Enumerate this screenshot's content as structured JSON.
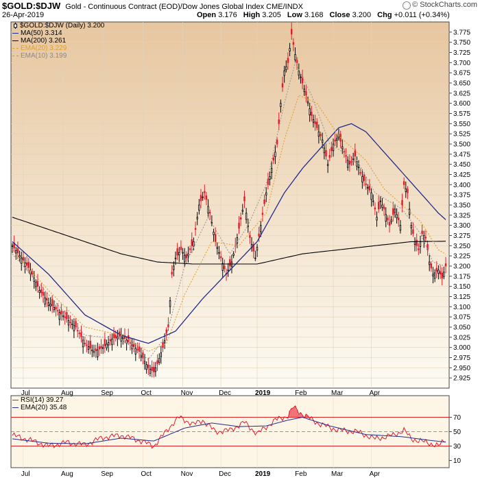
{
  "header": {
    "symbol": "$GOLD:$DJW",
    "title": "Gold - Continuous Contract (EOD)/Dow Jones Global Index  CME/INDX",
    "date": "26-Apr-2019",
    "open_label": "Open",
    "open": "3.176",
    "high_label": "High",
    "high": "3.205",
    "low_label": "Low",
    "low": "3.168",
    "close_label": "Close",
    "close": "3.200",
    "chg_label": "Chg",
    "chg": "+0.011 (+0.34%)",
    "brand": "© StockCharts.com"
  },
  "legend": {
    "main": "$GOLD:$DJW (Daily) 3.200",
    "ma50": "MA(50) 3.314",
    "ma200": "MA(200) 3.261",
    "ema20": "EMA(20) 3.229",
    "ema10": "EMA(10) 3.199",
    "rsi": "RSI(14) 39.27",
    "rsi_ema": "EMA(20) 35.48"
  },
  "colors": {
    "up_candle": "#000000",
    "down_candle": "#e8192c",
    "ma50": "#1e2a8c",
    "ma200": "#000000",
    "ema20": "#e0a030",
    "ema10": "#9a9a9a",
    "rsi_line": "#e8192c",
    "rsi_ema": "#1e2a8c",
    "bg_top": "#e7c69f",
    "bg_bottom": "#fdfbf3"
  },
  "chart_data": [
    {
      "type": "candlestick",
      "title": "$GOLD:$DJW (Daily)",
      "x_labels": [
        "Jul",
        "Aug",
        "Sep",
        "Oct",
        "Nov",
        "Dec",
        "2019",
        "Feb",
        "Mar",
        "Apr"
      ],
      "ylim": [
        2.9,
        3.8
      ],
      "y_ticks": [
        "3.775",
        "3.750",
        "3.725",
        "3.700",
        "3.675",
        "3.650",
        "3.625",
        "3.600",
        "3.575",
        "3.550",
        "3.525",
        "3.500",
        "3.475",
        "3.450",
        "3.425",
        "3.400",
        "3.375",
        "3.350",
        "3.325",
        "3.300",
        "3.275",
        "3.250",
        "3.225",
        "3.200",
        "3.175",
        "3.150",
        "3.125",
        "3.100",
        "3.075",
        "3.050",
        "3.025",
        "3.000",
        "2.975",
        "2.950",
        "2.925"
      ],
      "close_keypoints": [
        [
          0,
          3.25
        ],
        [
          5,
          3.22
        ],
        [
          10,
          3.19
        ],
        [
          15,
          3.14
        ],
        [
          20,
          3.11
        ],
        [
          25,
          3.09
        ],
        [
          30,
          3.07
        ],
        [
          35,
          3.05
        ],
        [
          40,
          3.01
        ],
        [
          45,
          2.99
        ],
        [
          50,
          3.0
        ],
        [
          55,
          3.02
        ],
        [
          60,
          3.03
        ],
        [
          65,
          3.01
        ],
        [
          70,
          2.99
        ],
        [
          75,
          2.95
        ],
        [
          78,
          2.94
        ],
        [
          80,
          2.96
        ],
        [
          83,
          3.0
        ],
        [
          86,
          3.05
        ],
        [
          88,
          3.18
        ],
        [
          90,
          3.22
        ],
        [
          93,
          3.24
        ],
        [
          96,
          3.22
        ],
        [
          100,
          3.26
        ],
        [
          103,
          3.35
        ],
        [
          106,
          3.38
        ],
        [
          109,
          3.33
        ],
        [
          112,
          3.26
        ],
        [
          115,
          3.22
        ],
        [
          118,
          3.18
        ],
        [
          121,
          3.21
        ],
        [
          124,
          3.27
        ],
        [
          128,
          3.36
        ],
        [
          131,
          3.27
        ],
        [
          134,
          3.22
        ],
        [
          137,
          3.3
        ],
        [
          140,
          3.38
        ],
        [
          143,
          3.44
        ],
        [
          146,
          3.5
        ],
        [
          148,
          3.6
        ],
        [
          150,
          3.68
        ],
        [
          152,
          3.7
        ],
        [
          154,
          3.77
        ],
        [
          156,
          3.72
        ],
        [
          158,
          3.68
        ],
        [
          160,
          3.65
        ],
        [
          162,
          3.62
        ],
        [
          165,
          3.57
        ],
        [
          168,
          3.54
        ],
        [
          171,
          3.51
        ],
        [
          174,
          3.45
        ],
        [
          177,
          3.5
        ],
        [
          180,
          3.52
        ],
        [
          183,
          3.48
        ],
        [
          186,
          3.45
        ],
        [
          189,
          3.47
        ],
        [
          192,
          3.43
        ],
        [
          195,
          3.4
        ],
        [
          198,
          3.38
        ],
        [
          201,
          3.32
        ],
        [
          203,
          3.36
        ],
        [
          205,
          3.34
        ],
        [
          208,
          3.3
        ],
        [
          211,
          3.34
        ],
        [
          214,
          3.3
        ],
        [
          216,
          3.4
        ],
        [
          218,
          3.38
        ],
        [
          220,
          3.3
        ],
        [
          222,
          3.26
        ],
        [
          224,
          3.24
        ],
        [
          226,
          3.28
        ],
        [
          228,
          3.27
        ],
        [
          230,
          3.21
        ],
        [
          232,
          3.18
        ],
        [
          235,
          3.19
        ],
        [
          237,
          3.17
        ],
        [
          239,
          3.2
        ]
      ],
      "series": [
        {
          "name": "MA(50)",
          "keypoints": [
            [
              0,
              3.26
            ],
            [
              20,
              3.18
            ],
            [
              40,
              3.08
            ],
            [
              60,
              3.03
            ],
            [
              75,
              3.01
            ],
            [
              90,
              3.04
            ],
            [
              105,
              3.12
            ],
            [
              120,
              3.19
            ],
            [
              135,
              3.26
            ],
            [
              150,
              3.38
            ],
            [
              160,
              3.44
            ],
            [
              170,
              3.49
            ],
            [
              180,
              3.54
            ],
            [
              187,
              3.55
            ],
            [
              195,
              3.53
            ],
            [
              205,
              3.48
            ],
            [
              215,
              3.43
            ],
            [
              225,
              3.38
            ],
            [
              235,
              3.33
            ],
            [
              239,
              3.314
            ]
          ]
        },
        {
          "name": "MA(200)",
          "keypoints": [
            [
              0,
              3.32
            ],
            [
              20,
              3.29
            ],
            [
              40,
              3.26
            ],
            [
              60,
              3.23
            ],
            [
              80,
              3.21
            ],
            [
              100,
              3.205
            ],
            [
              120,
              3.205
            ],
            [
              135,
              3.205
            ],
            [
              150,
              3.22
            ],
            [
              160,
              3.23
            ],
            [
              180,
              3.24
            ],
            [
              200,
              3.25
            ],
            [
              220,
              3.26
            ],
            [
              239,
              3.261
            ]
          ]
        },
        {
          "name": "EMA(20)",
          "keypoints": [
            [
              0,
              3.24
            ],
            [
              20,
              3.14
            ],
            [
              40,
              3.05
            ],
            [
              60,
              3.03
            ],
            [
              75,
              2.99
            ],
            [
              85,
              3.01
            ],
            [
              95,
              3.13
            ],
            [
              110,
              3.26
            ],
            [
              125,
              3.25
            ],
            [
              140,
              3.33
            ],
            [
              150,
              3.51
            ],
            [
              158,
              3.62
            ],
            [
              168,
              3.6
            ],
            [
              180,
              3.52
            ],
            [
              195,
              3.46
            ],
            [
              205,
              3.39
            ],
            [
              215,
              3.35
            ],
            [
              225,
              3.31
            ],
            [
              235,
              3.24
            ],
            [
              239,
              3.229
            ]
          ]
        },
        {
          "name": "EMA(10)",
          "keypoints": [
            [
              0,
              3.23
            ],
            [
              20,
              3.13
            ],
            [
              40,
              3.03
            ],
            [
              60,
              3.02
            ],
            [
              75,
              2.97
            ],
            [
              85,
              3.03
            ],
            [
              95,
              3.2
            ],
            [
              108,
              3.32
            ],
            [
              120,
              3.23
            ],
            [
              130,
              3.3
            ],
            [
              140,
              3.4
            ],
            [
              150,
              3.6
            ],
            [
              156,
              3.7
            ],
            [
              165,
              3.62
            ],
            [
              175,
              3.5
            ],
            [
              190,
              3.46
            ],
            [
              200,
              3.38
            ],
            [
              215,
              3.34
            ],
            [
              225,
              3.28
            ],
            [
              232,
              3.21
            ],
            [
              239,
              3.199
            ]
          ]
        }
      ]
    },
    {
      "type": "line",
      "title": "RSI(14)",
      "ylim": [
        0,
        100
      ],
      "y_ticks": [
        "70",
        "50",
        "30",
        "10"
      ],
      "reference_lines": [
        70,
        50,
        30
      ],
      "series": [
        {
          "name": "RSI(14)",
          "keypoints": [
            [
              0,
              45
            ],
            [
              10,
              38
            ],
            [
              20,
              30
            ],
            [
              30,
              35
            ],
            [
              40,
              32
            ],
            [
              50,
              42
            ],
            [
              60,
              45
            ],
            [
              70,
              38
            ],
            [
              78,
              30
            ],
            [
              88,
              60
            ],
            [
              92,
              70
            ],
            [
              100,
              60
            ],
            [
              105,
              66
            ],
            [
              112,
              50
            ],
            [
              120,
              52
            ],
            [
              128,
              63
            ],
            [
              135,
              47
            ],
            [
              145,
              66
            ],
            [
              152,
              72
            ],
            [
              155,
              84
            ],
            [
              160,
              74
            ],
            [
              170,
              60
            ],
            [
              180,
              52
            ],
            [
              190,
              50
            ],
            [
              200,
              40
            ],
            [
              210,
              45
            ],
            [
              216,
              52
            ],
            [
              220,
              40
            ],
            [
              230,
              34
            ],
            [
              235,
              30
            ],
            [
              239,
              39.27
            ]
          ]
        },
        {
          "name": "EMA(20)",
          "keypoints": [
            [
              0,
              40
            ],
            [
              20,
              34
            ],
            [
              40,
              33
            ],
            [
              60,
              41
            ],
            [
              78,
              37
            ],
            [
              95,
              55
            ],
            [
              110,
              62
            ],
            [
              125,
              57
            ],
            [
              140,
              58
            ],
            [
              152,
              66
            ],
            [
              160,
              70
            ],
            [
              175,
              58
            ],
            [
              195,
              46
            ],
            [
              215,
              43
            ],
            [
              230,
              38
            ],
            [
              239,
              35.48
            ]
          ]
        }
      ]
    }
  ]
}
